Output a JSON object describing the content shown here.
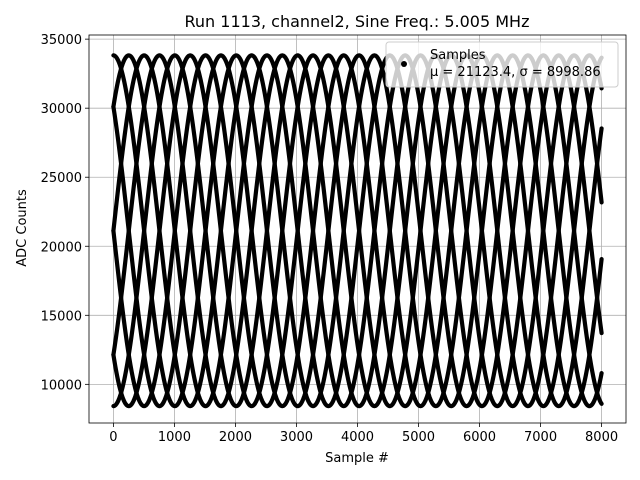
{
  "chart_data": {
    "type": "scatter",
    "title": "Run 1113, channel2, Sine Freq.: 5.005 MHz",
    "xlabel": "Sample #",
    "ylabel": "ADC Counts",
    "xlim": [
      -400,
      8400
    ],
    "ylim": [
      7200,
      35300
    ],
    "xticks": [
      0,
      1000,
      2000,
      3000,
      4000,
      5000,
      6000,
      7000,
      8000
    ],
    "yticks": [
      10000,
      15000,
      20000,
      25000,
      30000,
      35000
    ],
    "grid": true,
    "legend_position": "top-right",
    "marker_color": "#000000",
    "series": [
      {
        "name": "Samples",
        "stats_label": "μ = 21123.4, σ = 8998.86",
        "mean": 21123.4,
        "amplitude": 12700,
        "period_samples": 2013,
        "phase_offsets_deg": [
          0,
          45,
          90,
          135,
          180,
          225,
          270,
          315
        ],
        "x_range": [
          0,
          8000
        ]
      }
    ]
  }
}
